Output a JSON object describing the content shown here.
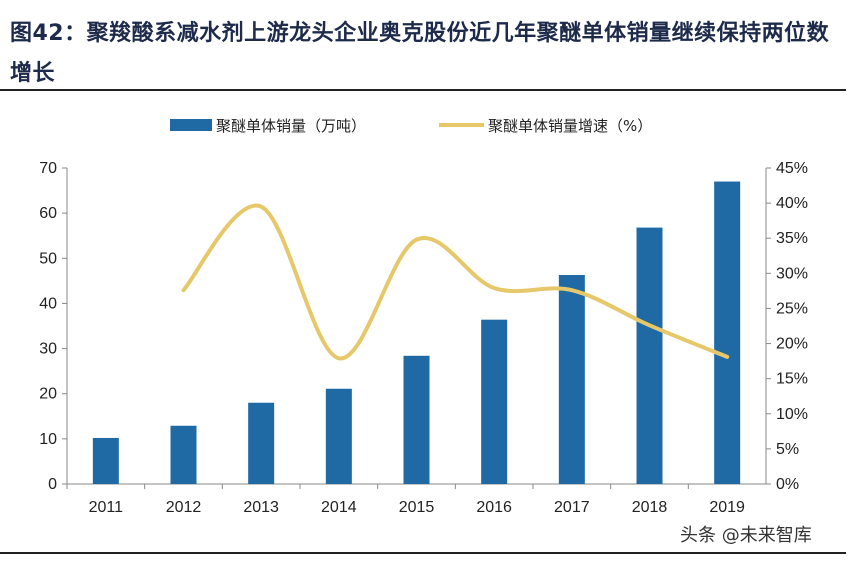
{
  "title": "图42：聚羧酸系减水剂上游龙头企业奥克股份近几年聚醚单体销量继续保持两位数增长",
  "watermark": "头条 @未来智库",
  "chart_data": {
    "type": "bar+line",
    "categories": [
      "2011",
      "2012",
      "2013",
      "2014",
      "2015",
      "2016",
      "2017",
      "2018",
      "2019"
    ],
    "series": [
      {
        "name": "聚醚单体销量（万吨）",
        "type": "bar",
        "axis": "left",
        "color": "#1f6aa5",
        "values": [
          10.2,
          12.9,
          18.0,
          21.1,
          28.4,
          36.4,
          46.3,
          56.8,
          67.0
        ]
      },
      {
        "name": "聚醚单体销量增速（%）",
        "type": "line",
        "axis": "right",
        "color": "#e6c86a",
        "smooth": true,
        "values": [
          null,
          27.6,
          39.5,
          17.9,
          34.8,
          27.9,
          27.6,
          22.6,
          18.1
        ]
      }
    ],
    "y_left": {
      "lim": [
        0,
        70
      ],
      "ticks": [
        "0",
        "10",
        "20",
        "30",
        "40",
        "50",
        "60",
        "70"
      ]
    },
    "y_right": {
      "lim": [
        0,
        45
      ],
      "ticks": [
        "0%",
        "5%",
        "10%",
        "15%",
        "20%",
        "25%",
        "30%",
        "35%",
        "40%",
        "45%"
      ]
    },
    "grid": false,
    "legend": "top"
  }
}
